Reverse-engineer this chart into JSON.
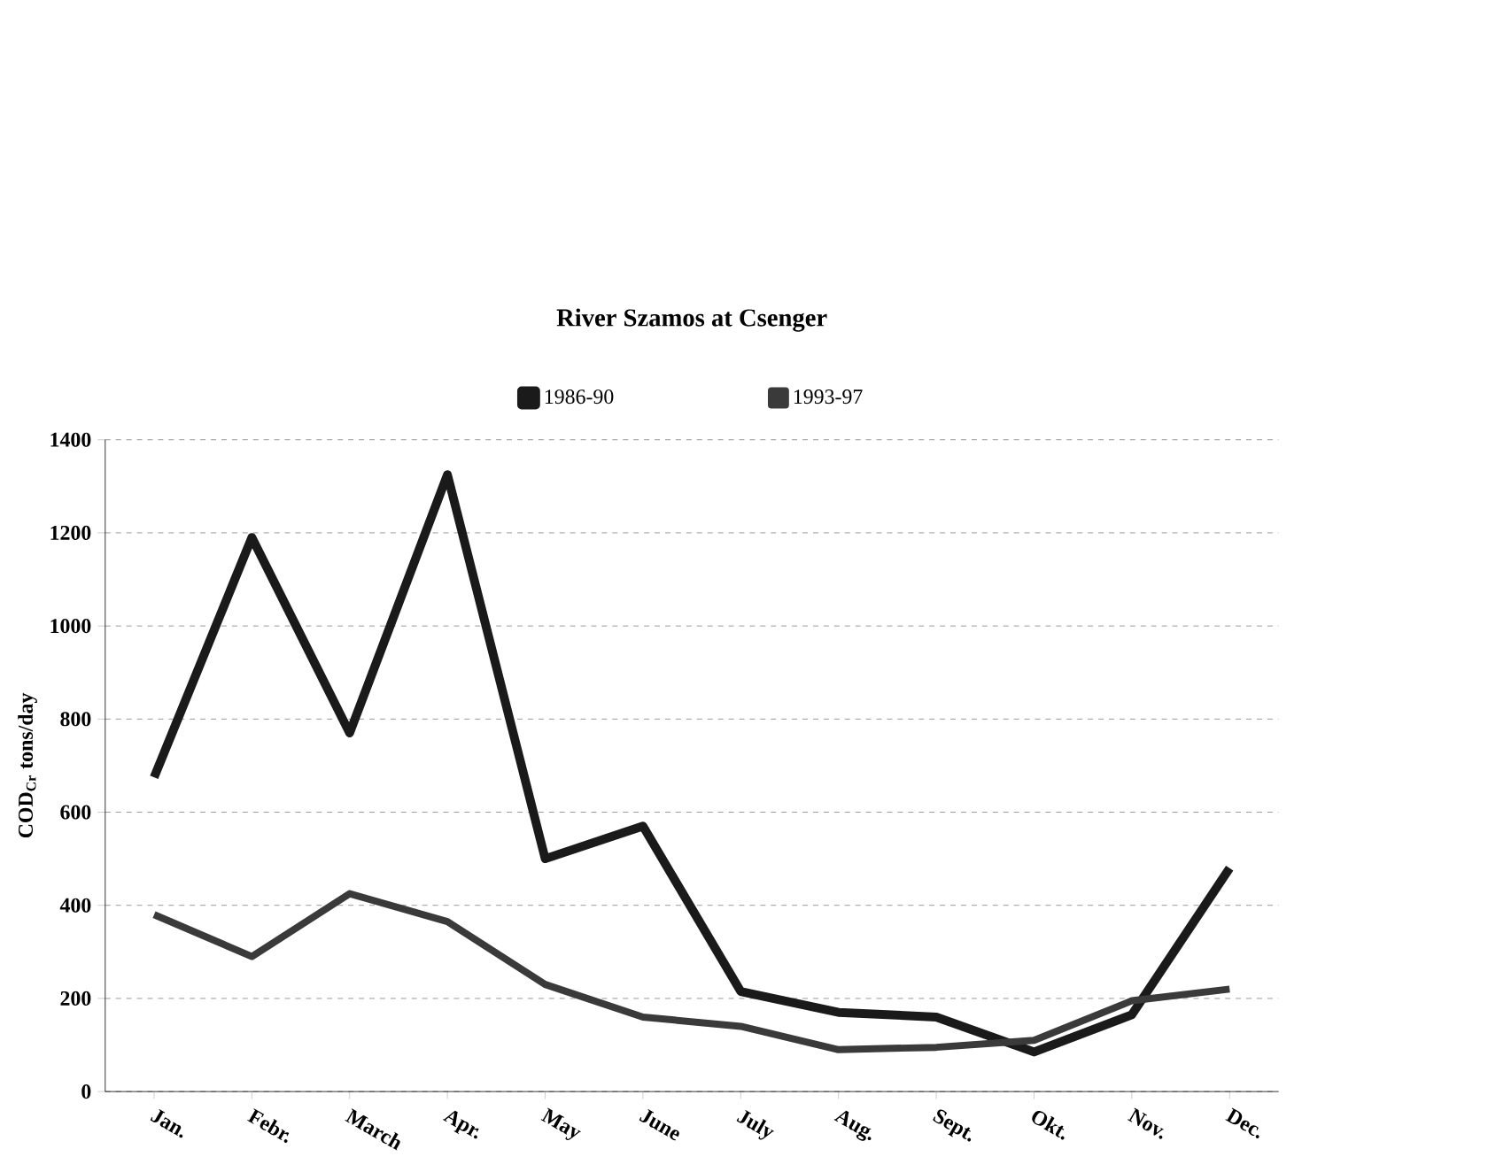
{
  "chart_data": {
    "type": "line",
    "title": "River Szamos at Csenger",
    "ylabel": "COD$_{Cr}$ tons/day",
    "categories": [
      "Jan.",
      "Febr.",
      "March",
      "Apr.",
      "May",
      "June",
      "July",
      "Aug.",
      "Sept.",
      "Okt.",
      "Nov.",
      "Dec."
    ],
    "series": [
      {
        "name": "1986-90",
        "color": "#1a1a1a",
        "values": [
          675,
          1190,
          770,
          1325,
          500,
          570,
          215,
          170,
          160,
          85,
          165,
          480
        ]
      },
      {
        "name": "1993-97",
        "color": "#3a3a3a",
        "values": [
          380,
          290,
          425,
          365,
          230,
          160,
          140,
          90,
          95,
          110,
          195,
          220
        ]
      }
    ],
    "ylim": [
      0,
      1400
    ],
    "yticks": [
      0,
      200,
      400,
      600,
      800,
      1000,
      1200,
      1400
    ],
    "grid": "y",
    "legend": "top",
    "marker": "none",
    "line_style": "solid"
  }
}
